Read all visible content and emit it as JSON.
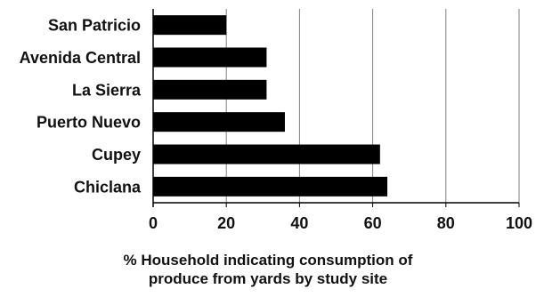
{
  "chart_data": {
    "type": "bar",
    "orientation": "horizontal",
    "categories": [
      "San Patricio",
      "Avenida Central",
      "La Sierra",
      "Puerto Nuevo",
      "Cupey",
      "Chiclana"
    ],
    "values": [
      20,
      31,
      31,
      36,
      62,
      64
    ],
    "xlim": [
      0,
      100
    ],
    "xticks": [
      0,
      20,
      40,
      60,
      80,
      100
    ],
    "xlabel_lines": [
      "% Household indicating consumption of",
      "produce from yards by study site"
    ],
    "bar_color": "#000000",
    "grid": "vertical"
  }
}
